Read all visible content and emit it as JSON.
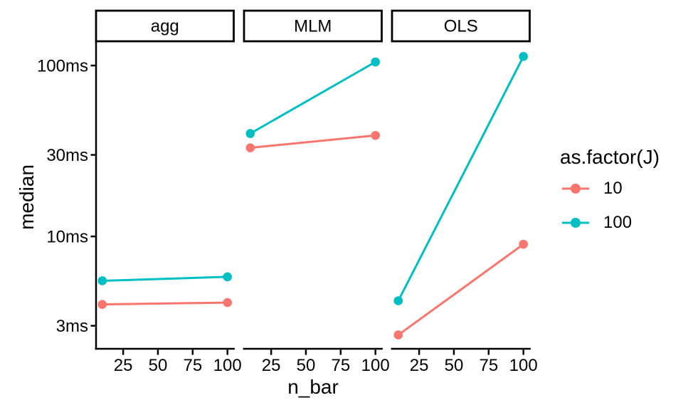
{
  "chart_data": {
    "type": "line",
    "title": "",
    "xlabel": "n_bar",
    "ylabel": "median",
    "x_ticks": [
      25,
      50,
      75,
      100
    ],
    "xlim": [
      5.5,
      104.5
    ],
    "y_scale": "log10",
    "y_ticks": [
      {
        "value": 3,
        "label": "3ms"
      },
      {
        "value": 10,
        "label": "10ms"
      },
      {
        "value": 30,
        "label": "30ms"
      },
      {
        "value": 100,
        "label": "100ms"
      }
    ],
    "ylim_ms": [
      2.2,
      140
    ],
    "grid": false,
    "axis_color": "#000000",
    "text_color": "#000000",
    "strip_fill": "#ffffff",
    "strip_border": "#000000",
    "facets": [
      {
        "label": "agg",
        "series": [
          {
            "name": "10",
            "color": "#F8766D",
            "x": [
              10,
              100
            ],
            "y_ms": [
              4.0,
              4.1
            ]
          },
          {
            "name": "100",
            "color": "#00BFC4",
            "x": [
              10,
              100
            ],
            "y_ms": [
              5.5,
              5.8
            ]
          }
        ]
      },
      {
        "label": "MLM",
        "series": [
          {
            "name": "10",
            "color": "#F8766D",
            "x": [
              10,
              100
            ],
            "y_ms": [
              33,
              39
            ]
          },
          {
            "name": "100",
            "color": "#00BFC4",
            "x": [
              10,
              100
            ],
            "y_ms": [
              40,
              105
            ]
          }
        ]
      },
      {
        "label": "OLS",
        "series": [
          {
            "name": "10",
            "color": "#F8766D",
            "x": [
              10,
              100
            ],
            "y_ms": [
              2.65,
              9
            ]
          },
          {
            "name": "100",
            "color": "#00BFC4",
            "x": [
              10,
              100
            ],
            "y_ms": [
              4.2,
              113
            ]
          }
        ]
      }
    ],
    "legend": {
      "title": "as.factor(J)",
      "position": "right",
      "items": [
        {
          "label": "10",
          "color": "#F8766D"
        },
        {
          "label": "100",
          "color": "#00BFC4"
        }
      ]
    }
  }
}
